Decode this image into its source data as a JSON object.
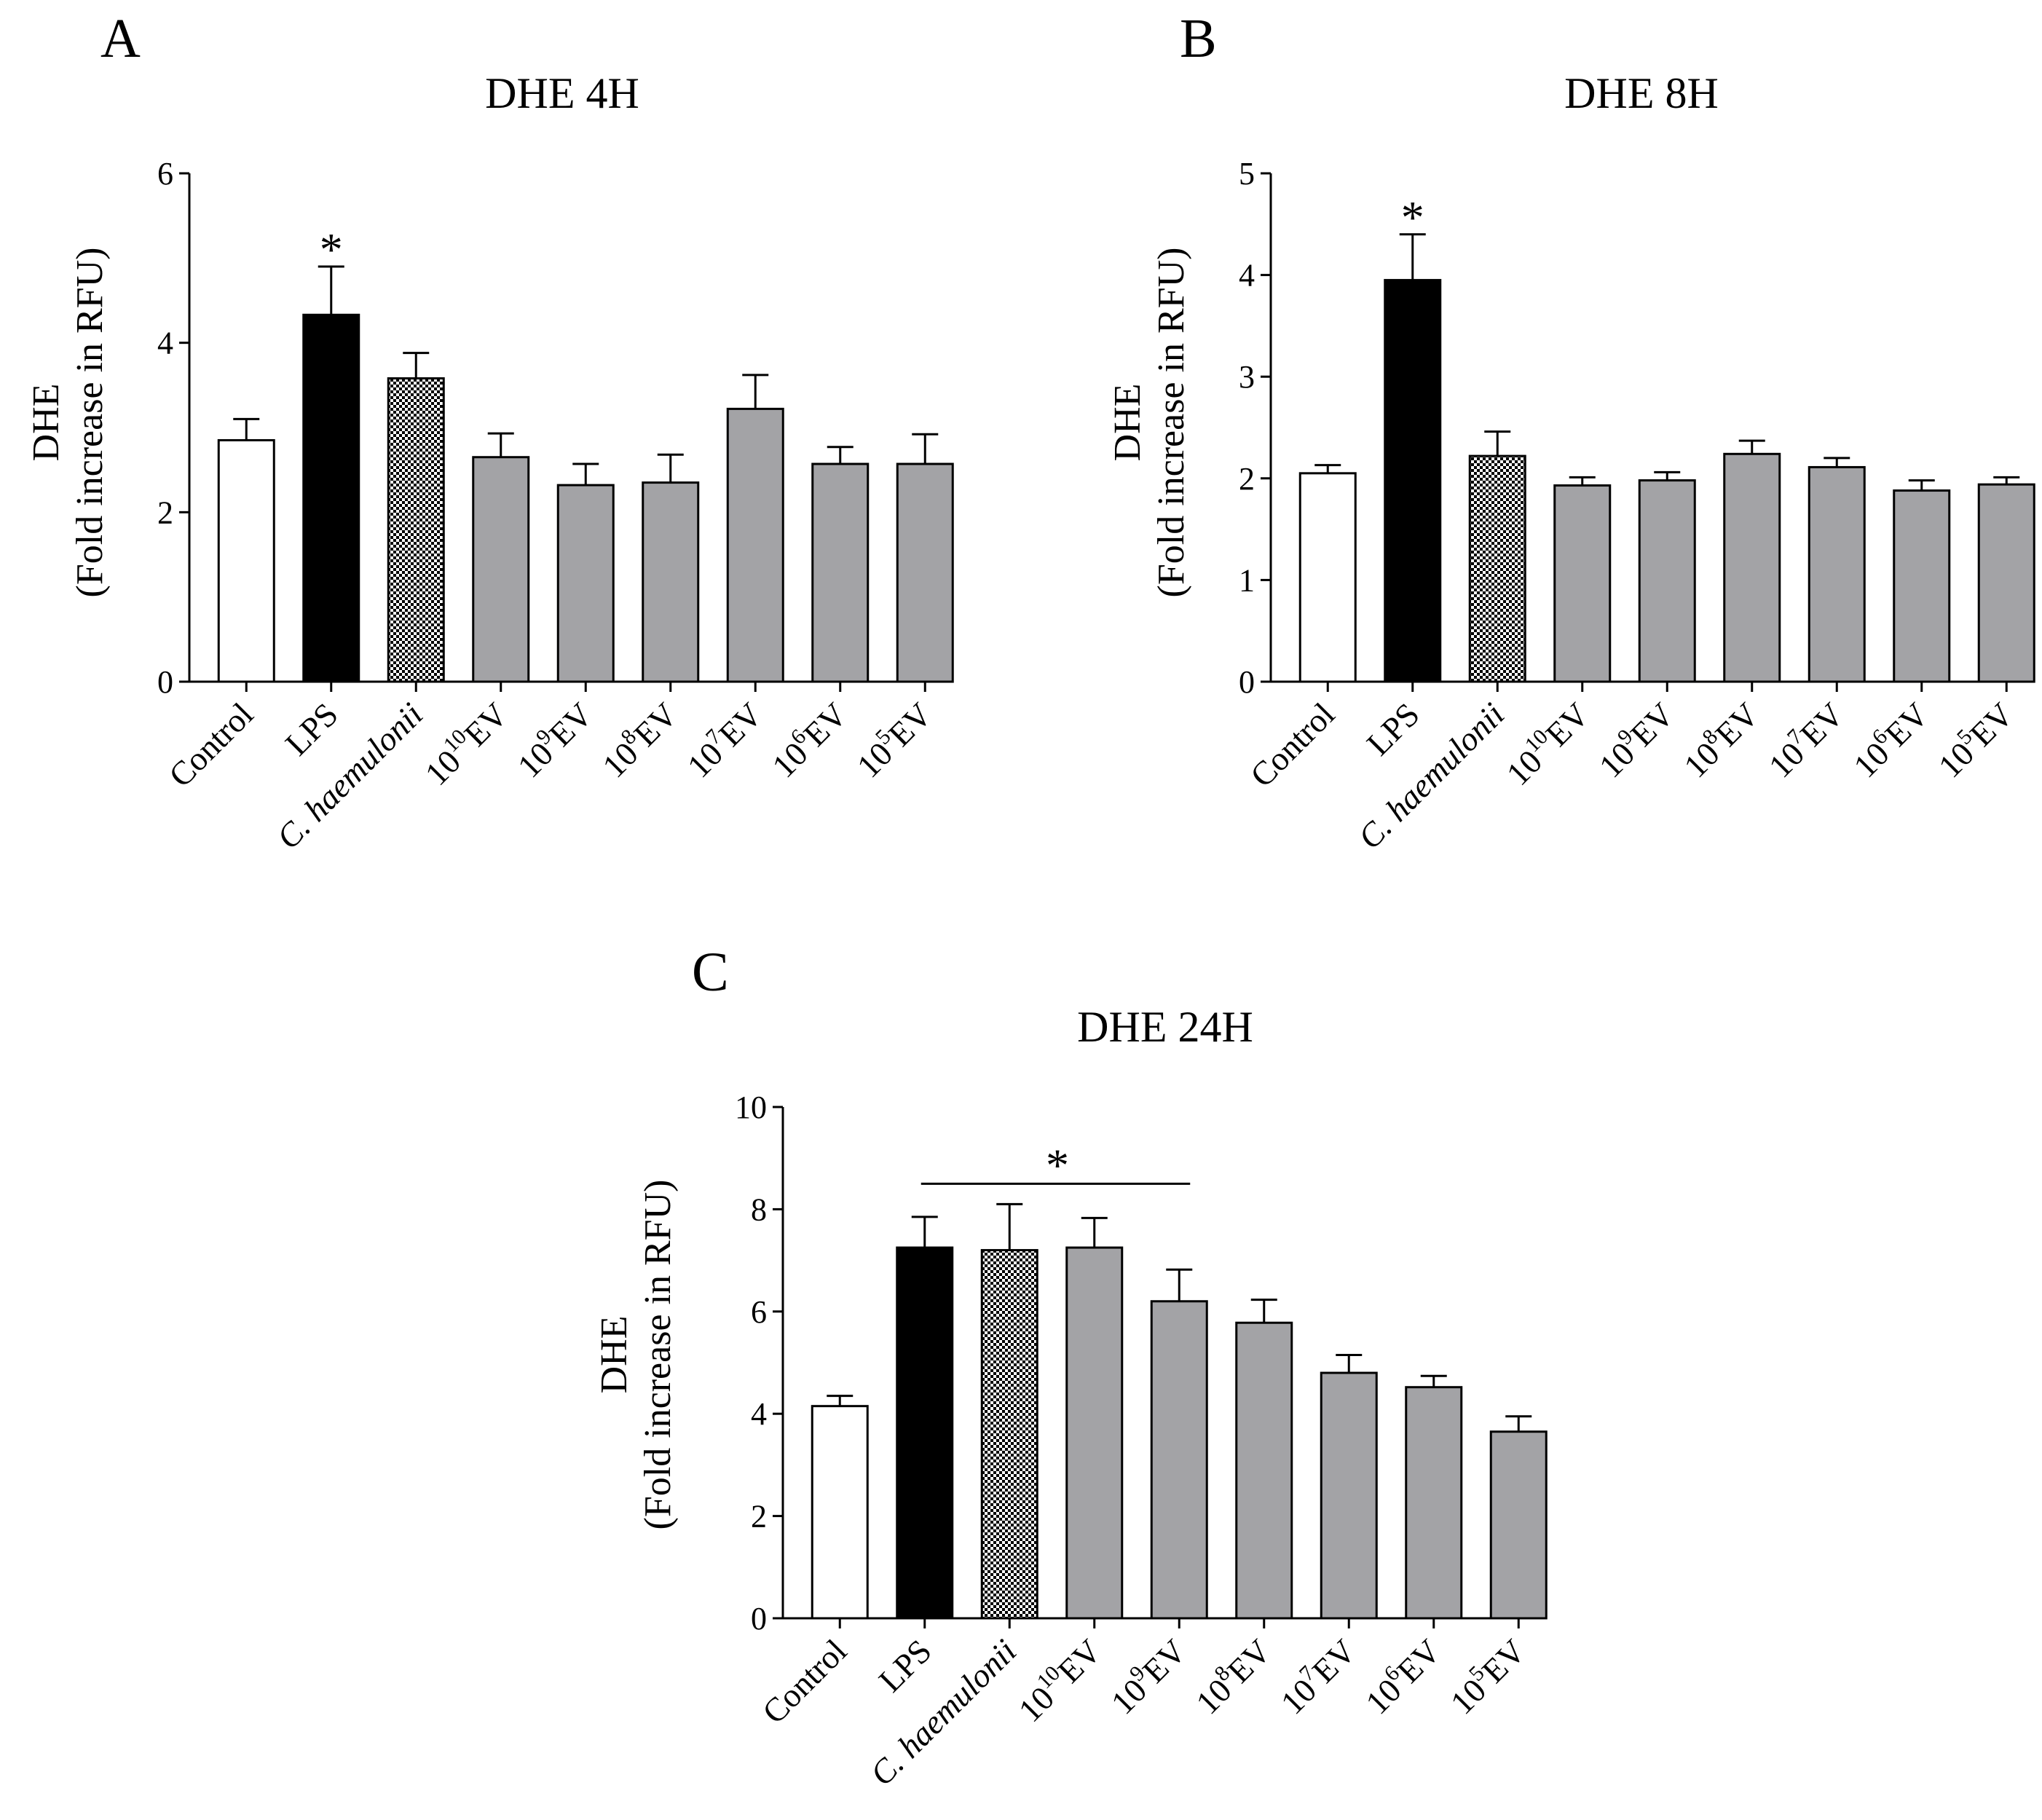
{
  "panels": [
    {
      "id": "A",
      "letter": "A",
      "title": "DHE 4H",
      "ylabel_line1": "DHE",
      "ylabel_line2": "(Fold increase in RFU)",
      "sig_marker": "*"
    },
    {
      "id": "B",
      "letter": "B",
      "title": "DHE 8H",
      "ylabel_line1": "DHE",
      "ylabel_line2": "(Fold increase in RFU)",
      "sig_marker": "*"
    },
    {
      "id": "C",
      "letter": "C",
      "title": "DHE 24H",
      "ylabel_line1": "DHE",
      "ylabel_line2": "(Fold increase in RFU)",
      "sig_marker": "*"
    }
  ],
  "colors": {
    "control": "#ffffff",
    "lps": "#000000",
    "haemulonii_check_a": "#000000",
    "haemulonii_check_b": "#ffffff",
    "ev": "#a3a3a6"
  },
  "chart_data": [
    {
      "type": "bar",
      "panel": "A",
      "title": "DHE 4H",
      "xlabel": "",
      "ylabel": "DHE (Fold increase in RFU)",
      "ylim": [
        0,
        6
      ],
      "yticks": [
        0,
        2,
        4,
        6
      ],
      "categories": [
        {
          "base": "Control",
          "exp": "",
          "suffix": "",
          "italic": false,
          "fill": "control"
        },
        {
          "base": "LPS",
          "exp": "",
          "suffix": "",
          "italic": false,
          "fill": "lps"
        },
        {
          "base": "C. haemulonii",
          "exp": "",
          "suffix": "",
          "italic": true,
          "fill": "checker"
        },
        {
          "base": "10",
          "exp": "10",
          "suffix": "EV",
          "italic": false,
          "fill": "ev"
        },
        {
          "base": "10",
          "exp": "9",
          "suffix": "EV",
          "italic": false,
          "fill": "ev"
        },
        {
          "base": "10",
          "exp": "8",
          "suffix": "EV",
          "italic": false,
          "fill": "ev"
        },
        {
          "base": "10",
          "exp": "7",
          "suffix": "EV",
          "italic": false,
          "fill": "ev"
        },
        {
          "base": "10",
          "exp": "6",
          "suffix": "EV",
          "italic": false,
          "fill": "ev"
        },
        {
          "base": "10",
          "exp": "5",
          "suffix": "EV",
          "italic": false,
          "fill": "ev"
        }
      ],
      "values": [
        2.85,
        4.33,
        3.58,
        2.65,
        2.32,
        2.35,
        3.22,
        2.57,
        2.57
      ],
      "errors": [
        0.25,
        0.57,
        0.3,
        0.28,
        0.25,
        0.33,
        0.4,
        0.2,
        0.35
      ],
      "significance": {
        "kind": "single",
        "index": 1
      }
    },
    {
      "type": "bar",
      "panel": "B",
      "title": "DHE 8H",
      "xlabel": "",
      "ylabel": "DHE (Fold increase in RFU)",
      "ylim": [
        0,
        5
      ],
      "yticks": [
        0,
        1,
        2,
        3,
        4,
        5
      ],
      "categories": [
        {
          "base": "Control",
          "exp": "",
          "suffix": "",
          "italic": false,
          "fill": "control"
        },
        {
          "base": "LPS",
          "exp": "",
          "suffix": "",
          "italic": false,
          "fill": "lps"
        },
        {
          "base": "C. haemulonii",
          "exp": "",
          "suffix": "",
          "italic": true,
          "fill": "checker"
        },
        {
          "base": "10",
          "exp": "10",
          "suffix": "EV",
          "italic": false,
          "fill": "ev"
        },
        {
          "base": "10",
          "exp": "9",
          "suffix": "EV",
          "italic": false,
          "fill": "ev"
        },
        {
          "base": "10",
          "exp": "8",
          "suffix": "EV",
          "italic": false,
          "fill": "ev"
        },
        {
          "base": "10",
          "exp": "7",
          "suffix": "EV",
          "italic": false,
          "fill": "ev"
        },
        {
          "base": "10",
          "exp": "6",
          "suffix": "EV",
          "italic": false,
          "fill": "ev"
        },
        {
          "base": "10",
          "exp": "5",
          "suffix": "EV",
          "italic": false,
          "fill": "ev"
        }
      ],
      "values": [
        2.05,
        3.95,
        2.22,
        1.93,
        1.98,
        2.24,
        2.11,
        1.88,
        1.94
      ],
      "errors": [
        0.08,
        0.45,
        0.24,
        0.08,
        0.08,
        0.13,
        0.09,
        0.1,
        0.07
      ],
      "significance": {
        "kind": "single",
        "index": 1
      }
    },
    {
      "type": "bar",
      "panel": "C",
      "title": "DHE 24H",
      "xlabel": "",
      "ylabel": "DHE (Fold increase in RFU)",
      "ylim": [
        0,
        10
      ],
      "yticks": [
        0,
        2,
        4,
        6,
        8,
        10
      ],
      "categories": [
        {
          "base": "Control",
          "exp": "",
          "suffix": "",
          "italic": false,
          "fill": "control"
        },
        {
          "base": "LPS",
          "exp": "",
          "suffix": "",
          "italic": false,
          "fill": "lps"
        },
        {
          "base": "C. haemulonii",
          "exp": "",
          "suffix": "",
          "italic": true,
          "fill": "checker"
        },
        {
          "base": "10",
          "exp": "10",
          "suffix": "EV",
          "italic": false,
          "fill": "ev"
        },
        {
          "base": "10",
          "exp": "9",
          "suffix": "EV",
          "italic": false,
          "fill": "ev"
        },
        {
          "base": "10",
          "exp": "8",
          "suffix": "EV",
          "italic": false,
          "fill": "ev"
        },
        {
          "base": "10",
          "exp": "7",
          "suffix": "EV",
          "italic": false,
          "fill": "ev"
        },
        {
          "base": "10",
          "exp": "6",
          "suffix": "EV",
          "italic": false,
          "fill": "ev"
        },
        {
          "base": "10",
          "exp": "5",
          "suffix": "EV",
          "italic": false,
          "fill": "ev"
        }
      ],
      "values": [
        4.15,
        7.25,
        7.2,
        7.25,
        6.2,
        5.78,
        4.8,
        4.52,
        3.65
      ],
      "errors": [
        0.2,
        0.6,
        0.9,
        0.58,
        0.62,
        0.45,
        0.35,
        0.22,
        0.3
      ],
      "significance": {
        "kind": "bracket",
        "from": 1,
        "to": 4
      }
    }
  ]
}
